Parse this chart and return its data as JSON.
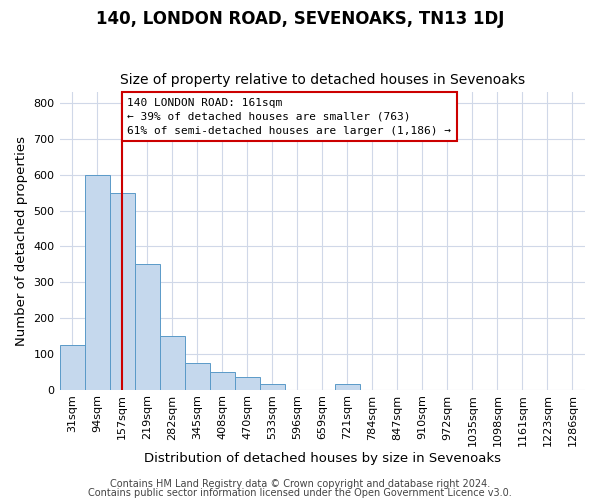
{
  "title": "140, LONDON ROAD, SEVENOAKS, TN13 1DJ",
  "subtitle": "Size of property relative to detached houses in Sevenoaks",
  "xlabel": "Distribution of detached houses by size in Sevenoaks",
  "ylabel": "Number of detached properties",
  "bin_labels": [
    "31sqm",
    "94sqm",
    "157sqm",
    "219sqm",
    "282sqm",
    "345sqm",
    "408sqm",
    "470sqm",
    "533sqm",
    "596sqm",
    "659sqm",
    "721sqm",
    "784sqm",
    "847sqm",
    "910sqm",
    "972sqm",
    "1035sqm",
    "1098sqm",
    "1161sqm",
    "1223sqm",
    "1286sqm"
  ],
  "bar_values": [
    125,
    600,
    550,
    350,
    150,
    75,
    50,
    35,
    15,
    0,
    0,
    15,
    0,
    0,
    0,
    0,
    0,
    0,
    0,
    0,
    0
  ],
  "bar_color": "#c5d8ed",
  "bar_edge_color": "#5a9ac8",
  "red_line_index": 2,
  "annotation_text": "140 LONDON ROAD: 161sqm\n← 39% of detached houses are smaller (763)\n61% of semi-detached houses are larger (1,186) →",
  "annotation_box_color": "#ffffff",
  "annotation_box_edge_color": "#cc0000",
  "ylim": [
    0,
    830
  ],
  "yticks": [
    0,
    100,
    200,
    300,
    400,
    500,
    600,
    700,
    800
  ],
  "footer1": "Contains HM Land Registry data © Crown copyright and database right 2024.",
  "footer2": "Contains public sector information licensed under the Open Government Licence v3.0.",
  "title_fontsize": 12,
  "subtitle_fontsize": 10,
  "axis_label_fontsize": 9.5,
  "tick_fontsize": 8,
  "footer_fontsize": 7,
  "bg_color": "#ffffff",
  "grid_color": "#d0d8e8"
}
